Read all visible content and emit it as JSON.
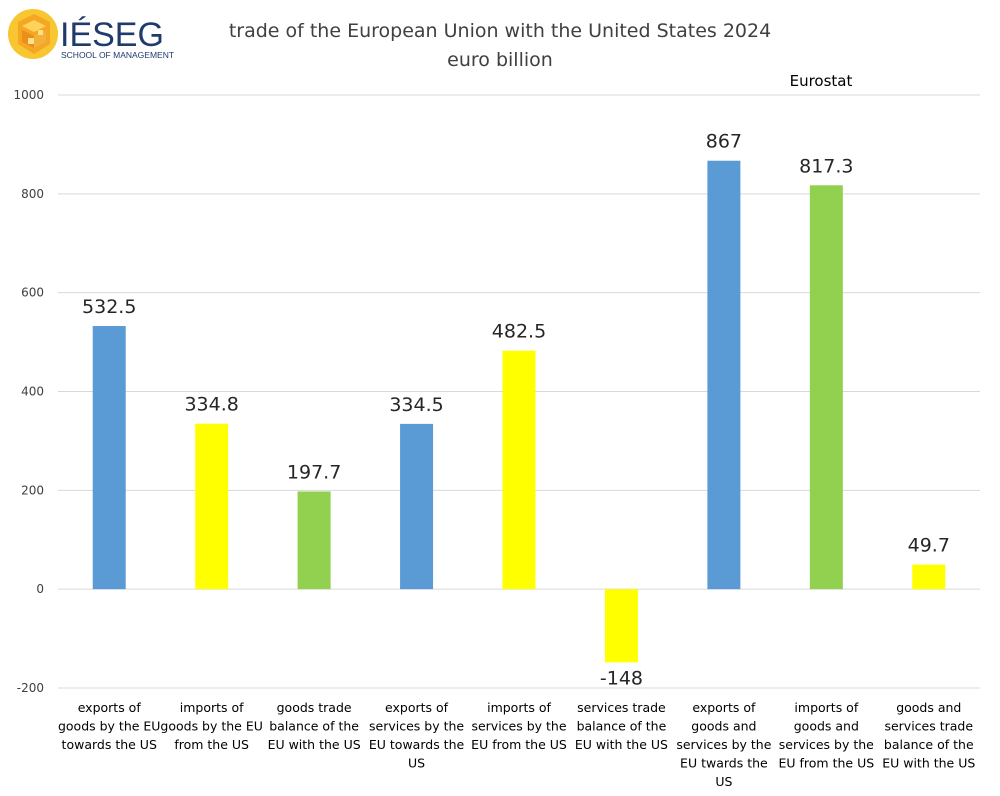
{
  "logo": {
    "name": "IÉSEG",
    "tagline": "SCHOOL OF MANAGEMENT",
    "colors": {
      "orange": "#F5A623",
      "yellow": "#F8C630",
      "text": "#1f3a6b"
    }
  },
  "source_label": "Eurostat",
  "chart_data": {
    "type": "bar",
    "title": "trade of the European Union with the United States 2024",
    "subtitle": "euro billion",
    "xlabel": "",
    "ylabel": "",
    "ylim": [
      -200,
      1000
    ],
    "yticks": [
      -200,
      0,
      200,
      400,
      600,
      800,
      1000
    ],
    "grid": true,
    "legend": "none",
    "categories": [
      "exports of goods by the EU towards the US",
      "imports of goods by the EU from the US",
      "goods trade balance of the EU with the US",
      "exports of services by the EU towards the US",
      "imports of services by the EU from the US",
      "services trade balance of the EU with the US",
      "exports of goods and services by the EU twards the US",
      "imports of goods and services by the EU from the US",
      "goods and services trade balance of the EU with the US"
    ],
    "category_lines": [
      [
        "exports of",
        "goods by the EU",
        "towards the US"
      ],
      [
        "imports of",
        "goods by the EU",
        "from the US"
      ],
      [
        "goods trade",
        "balance of the",
        "EU with the US"
      ],
      [
        "exports of",
        "services by the",
        "EU towards the",
        "US"
      ],
      [
        "imports of",
        "services by the",
        "EU from the US"
      ],
      [
        "services trade",
        "balance of the",
        "EU with the US"
      ],
      [
        "exports of",
        "goods and",
        "services by the",
        "EU twards the",
        "US"
      ],
      [
        "imports of",
        "goods and",
        "services by the",
        "EU from the US"
      ],
      [
        "goods and",
        "services trade",
        "balance of the",
        "EU with the US"
      ]
    ],
    "values": [
      532.5,
      334.8,
      197.7,
      334.5,
      482.5,
      -148,
      867,
      817.3,
      49.7
    ],
    "value_labels": [
      "532.5",
      "334.8",
      "197.7",
      "334.5",
      "482.5",
      "-148",
      "867",
      "817.3",
      "49.7"
    ],
    "colors": [
      "#5B9BD5",
      "#FFFF00",
      "#92D050",
      "#5B9BD5",
      "#FFFF00",
      "#FFFF00",
      "#5B9BD5",
      "#92D050",
      "#FFFF00"
    ],
    "gridline_color": "#d9d9d9"
  }
}
